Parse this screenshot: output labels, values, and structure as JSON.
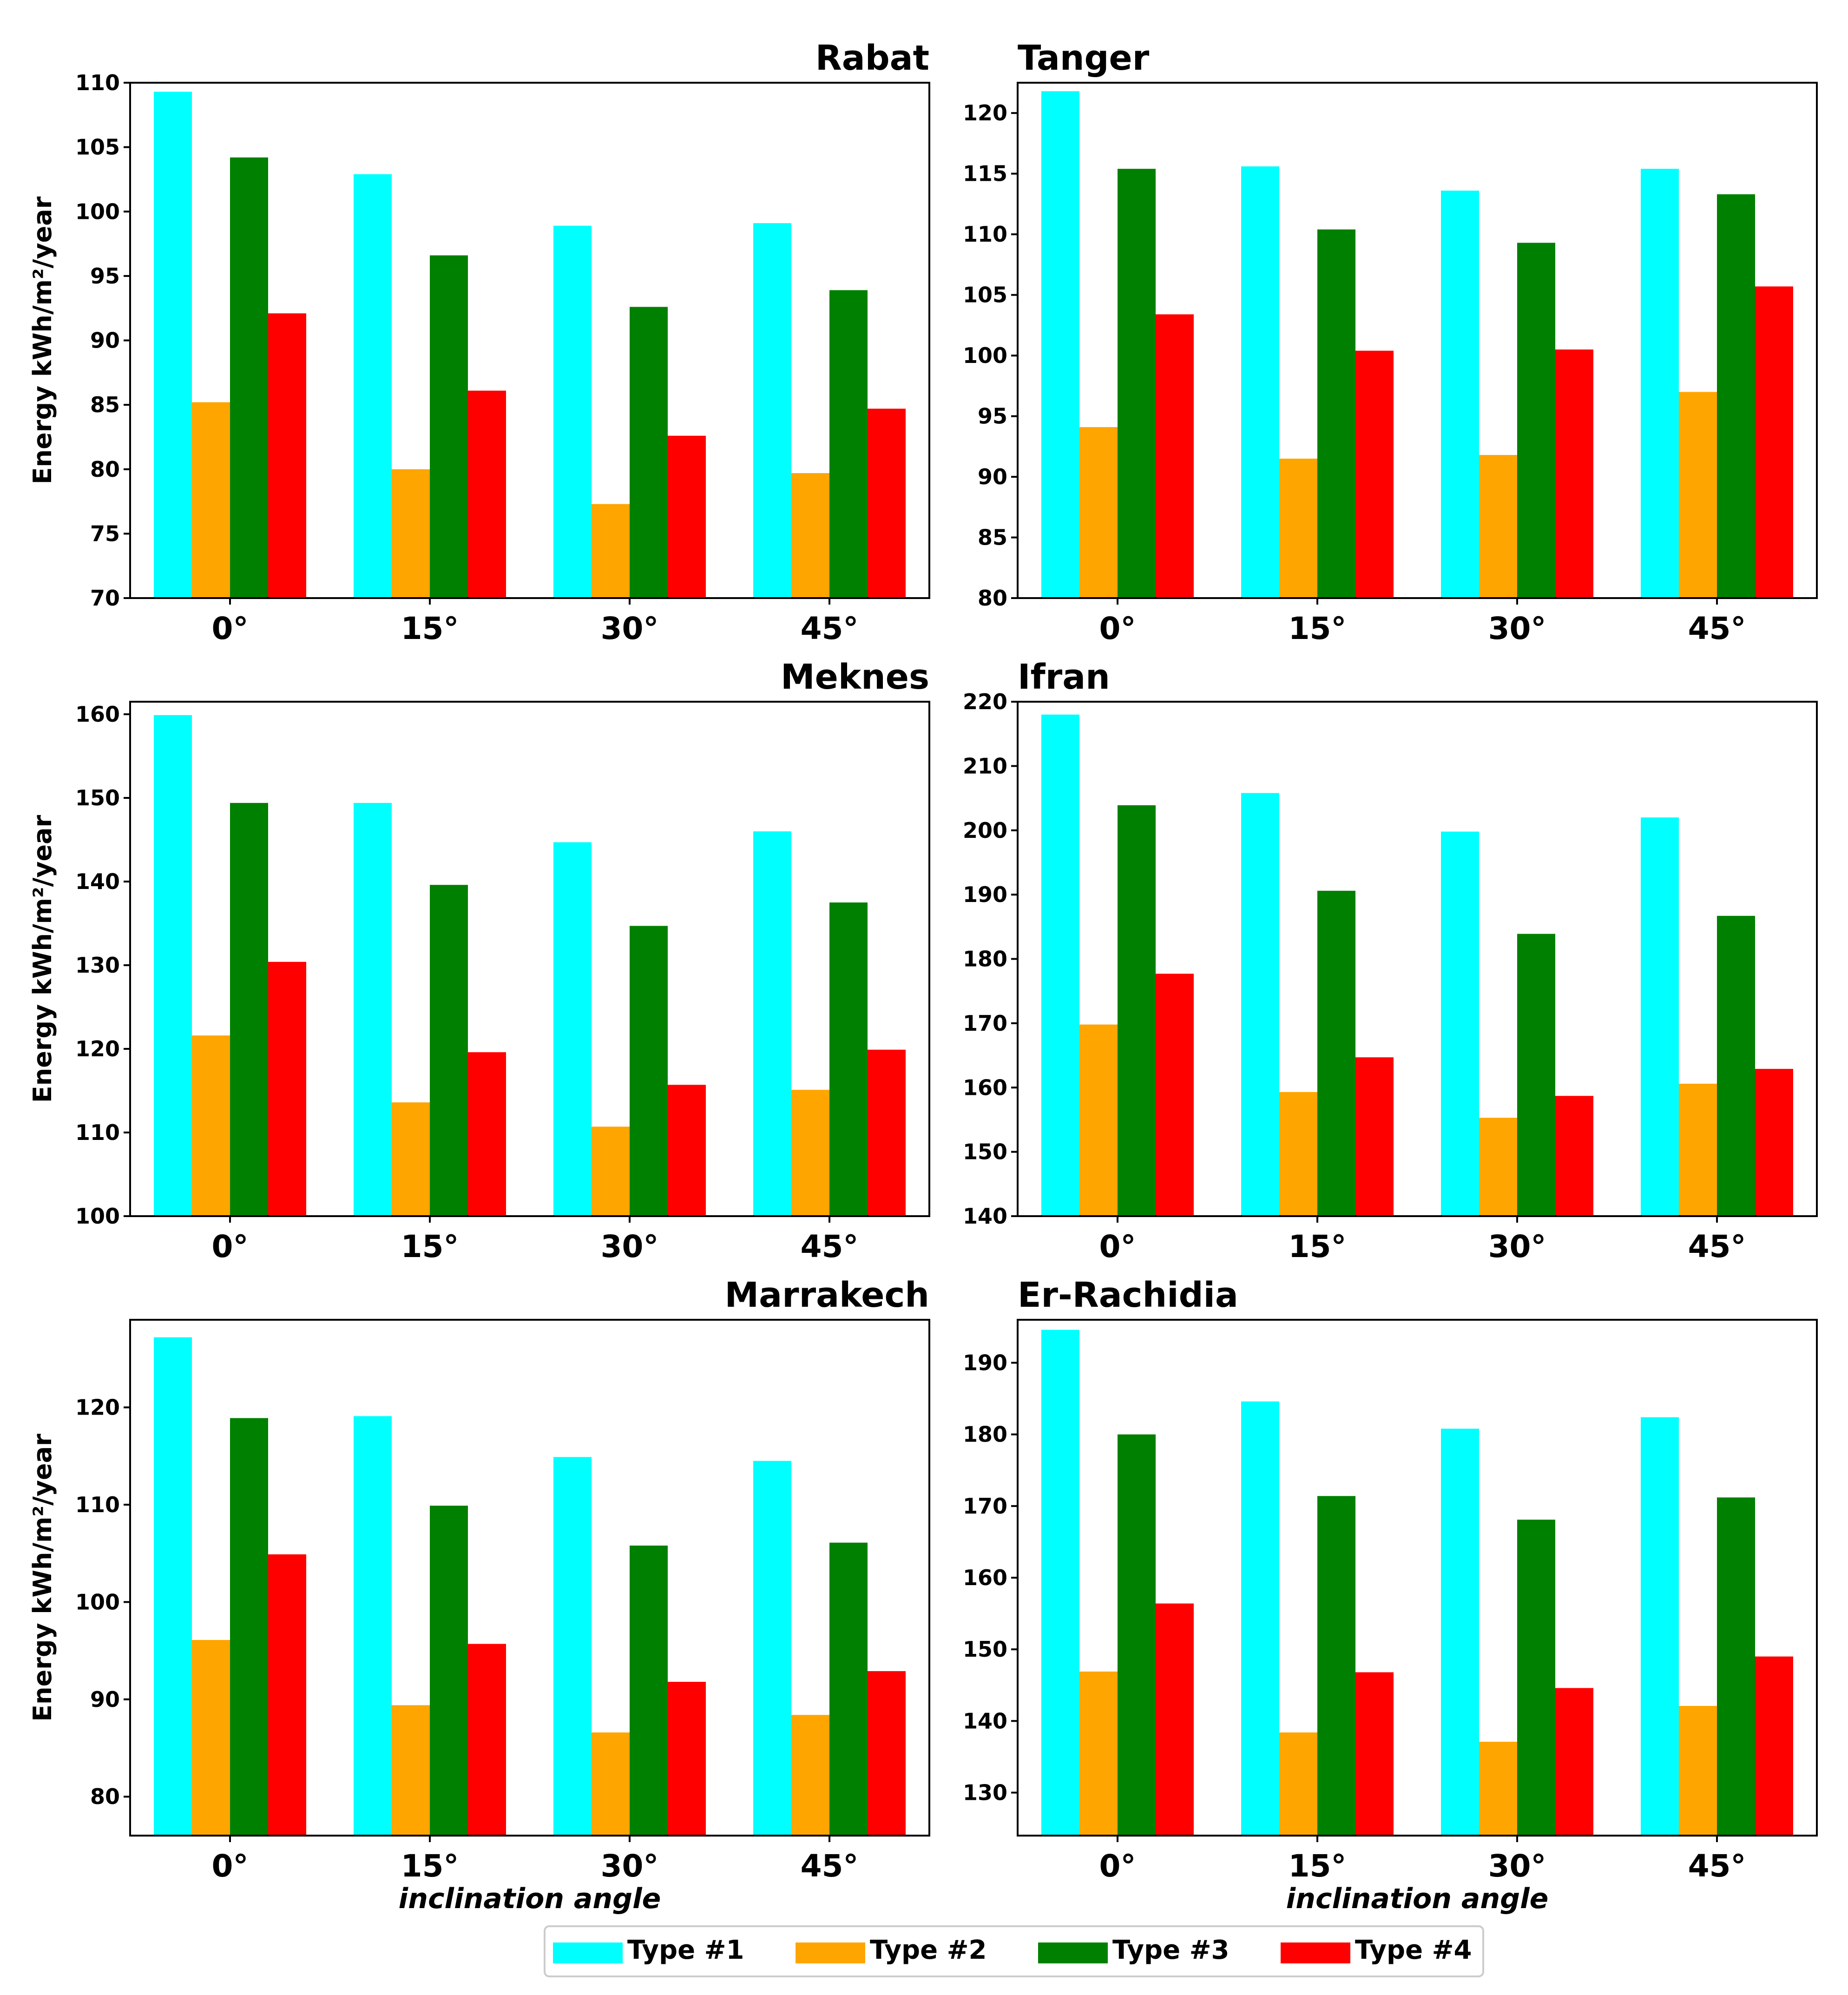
{
  "figure": {
    "ylabel": "Energy kWh/m²/year",
    "xlabel": "inclination angle"
  },
  "legend": {
    "entries": [
      "Type #1",
      "Type #2",
      "Type #3",
      "Type #4"
    ],
    "placement": "bottom-center"
  },
  "colors": [
    "#00ffff",
    "#ffa500",
    "#008000",
    "#ff0000"
  ],
  "chart_data": [
    {
      "type": "bar",
      "title": "Rabat",
      "title_align": "right",
      "categories": [
        "0°",
        "15°",
        "30°",
        "45°"
      ],
      "ylim": [
        70,
        110
      ],
      "yticks": [
        70,
        75,
        80,
        85,
        90,
        95,
        100,
        105,
        110
      ],
      "xlabel": "",
      "ylabel": "Energy kWh/m²/year",
      "series": [
        {
          "name": "Type #1",
          "values": [
            109.3,
            102.9,
            98.9,
            99.1
          ]
        },
        {
          "name": "Type #2",
          "values": [
            85.2,
            80.0,
            77.3,
            79.7
          ]
        },
        {
          "name": "Type #3",
          "values": [
            104.2,
            96.6,
            92.6,
            93.9
          ]
        },
        {
          "name": "Type #4",
          "values": [
            92.1,
            86.1,
            82.6,
            84.7
          ]
        }
      ]
    },
    {
      "type": "bar",
      "title": "Tanger",
      "title_align": "left",
      "categories": [
        "0°",
        "15°",
        "30°",
        "45°"
      ],
      "ylim": [
        80,
        122.5
      ],
      "yticks": [
        80,
        85,
        90,
        95,
        100,
        105,
        110,
        115,
        120
      ],
      "xlabel": "",
      "ylabel": "",
      "series": [
        {
          "name": "Type #1",
          "values": [
            121.8,
            115.6,
            113.6,
            115.4
          ]
        },
        {
          "name": "Type #2",
          "values": [
            94.1,
            91.5,
            91.8,
            97.0
          ]
        },
        {
          "name": "Type #3",
          "values": [
            115.4,
            110.4,
            109.3,
            113.3
          ]
        },
        {
          "name": "Type #4",
          "values": [
            103.4,
            100.4,
            100.5,
            105.7
          ]
        }
      ]
    },
    {
      "type": "bar",
      "title": "Meknes",
      "title_align": "right",
      "categories": [
        "0°",
        "15°",
        "30°",
        "45°"
      ],
      "ylim": [
        100,
        161.5
      ],
      "yticks": [
        100,
        110,
        120,
        130,
        140,
        150,
        160
      ],
      "xlabel": "",
      "ylabel": "Energy kWh/m²/year",
      "series": [
        {
          "name": "Type #1",
          "values": [
            159.9,
            149.4,
            144.7,
            146.0
          ]
        },
        {
          "name": "Type #2",
          "values": [
            121.6,
            113.6,
            110.7,
            115.1
          ]
        },
        {
          "name": "Type #3",
          "values": [
            149.4,
            139.6,
            134.7,
            137.5
          ]
        },
        {
          "name": "Type #4",
          "values": [
            130.4,
            119.6,
            115.7,
            119.9
          ]
        }
      ]
    },
    {
      "type": "bar",
      "title": "Ifran",
      "title_align": "left",
      "categories": [
        "0°",
        "15°",
        "30°",
        "45°"
      ],
      "ylim": [
        140,
        220
      ],
      "yticks": [
        140,
        150,
        160,
        170,
        180,
        190,
        200,
        210,
        220
      ],
      "xlabel": "",
      "ylabel": "",
      "series": [
        {
          "name": "Type #1",
          "values": [
            218.0,
            205.8,
            199.8,
            202.0
          ]
        },
        {
          "name": "Type #2",
          "values": [
            169.8,
            159.3,
            155.3,
            160.6
          ]
        },
        {
          "name": "Type #3",
          "values": [
            203.9,
            190.6,
            183.9,
            186.7
          ]
        },
        {
          "name": "Type #4",
          "values": [
            177.7,
            164.7,
            158.7,
            162.9
          ]
        }
      ]
    },
    {
      "type": "bar",
      "title": "Marrakech",
      "title_align": "right",
      "categories": [
        "0°",
        "15°",
        "30°",
        "45°"
      ],
      "ylim": [
        76,
        129
      ],
      "yticks": [
        80,
        90,
        100,
        110,
        120
      ],
      "xlabel": "inclination angle",
      "ylabel": "Energy kWh/m²/year",
      "series": [
        {
          "name": "Type #1",
          "values": [
            127.2,
            119.1,
            114.9,
            114.5
          ]
        },
        {
          "name": "Type #2",
          "values": [
            96.1,
            89.4,
            86.6,
            88.4
          ]
        },
        {
          "name": "Type #3",
          "values": [
            118.9,
            109.9,
            105.8,
            106.1
          ]
        },
        {
          "name": "Type #4",
          "values": [
            104.9,
            95.7,
            91.8,
            92.9
          ]
        }
      ]
    },
    {
      "type": "bar",
      "title": "Er-Rachidia",
      "title_align": "left",
      "categories": [
        "0°",
        "15°",
        "30°",
        "45°"
      ],
      "ylim": [
        124,
        196
      ],
      "yticks": [
        130,
        140,
        150,
        160,
        170,
        180,
        190
      ],
      "xlabel": "inclination angle",
      "ylabel": "",
      "series": [
        {
          "name": "Type #1",
          "values": [
            194.6,
            184.6,
            180.8,
            182.4
          ]
        },
        {
          "name": "Type #2",
          "values": [
            146.9,
            138.4,
            137.1,
            142.1
          ]
        },
        {
          "name": "Type #3",
          "values": [
            180.0,
            171.4,
            168.1,
            171.2
          ]
        },
        {
          "name": "Type #4",
          "values": [
            156.4,
            146.8,
            144.6,
            149.0
          ]
        }
      ]
    }
  ]
}
